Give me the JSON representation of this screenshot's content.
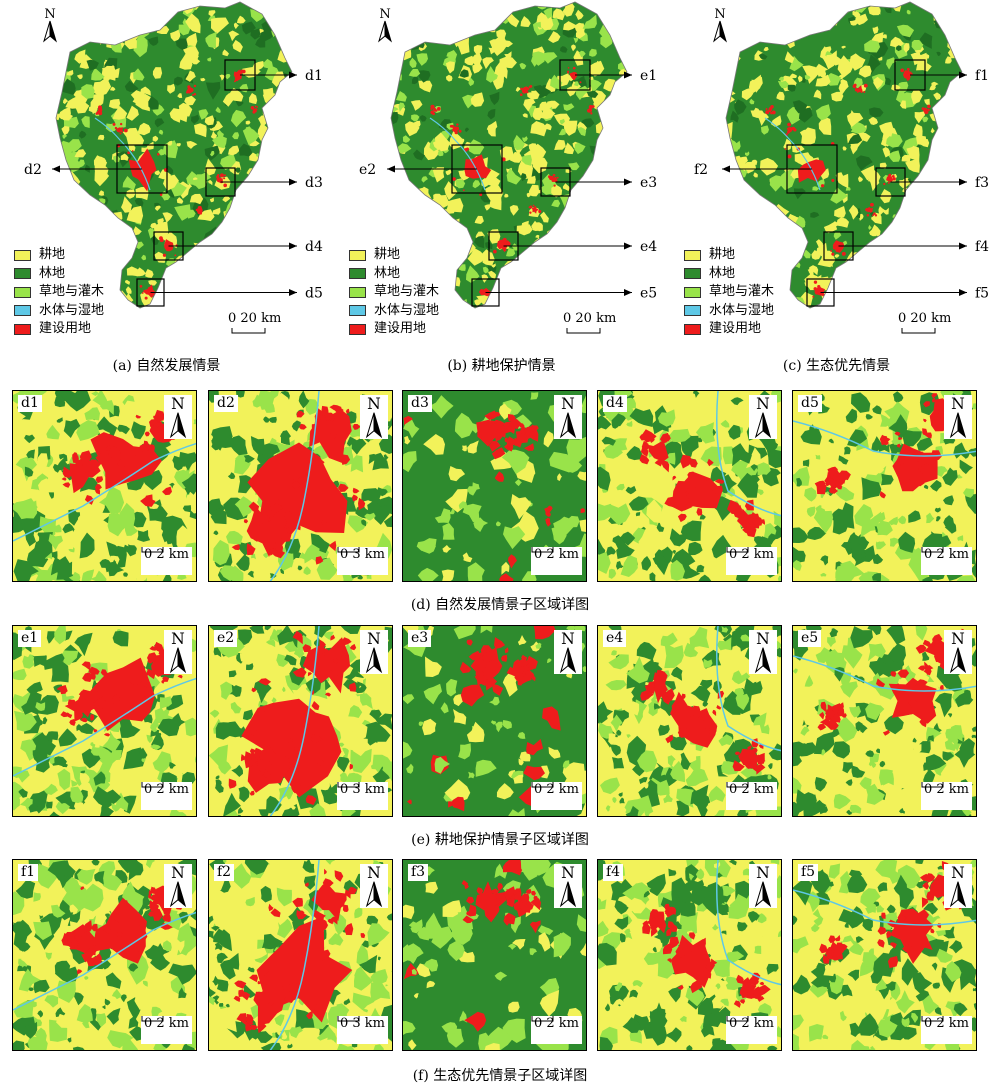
{
  "overview_maps": [
    {
      "id": "a",
      "caption": "(a) 自然发展情景",
      "prefix": "d",
      "boxes": [
        {
          "label": "d1"
        },
        {
          "label": "d2"
        },
        {
          "label": "d3"
        },
        {
          "label": "d4"
        },
        {
          "label": "d5"
        }
      ]
    },
    {
      "id": "b",
      "caption": "(b) 耕地保护情景",
      "prefix": "e",
      "boxes": [
        {
          "label": "e1"
        },
        {
          "label": "e2"
        },
        {
          "label": "e3"
        },
        {
          "label": "e4"
        },
        {
          "label": "e5"
        }
      ]
    },
    {
      "id": "c",
      "caption": "(c) 生态优先情景",
      "prefix": "f",
      "boxes": [
        {
          "label": "f1"
        },
        {
          "label": "f2"
        },
        {
          "label": "f3"
        },
        {
          "label": "f4"
        },
        {
          "label": "f5"
        }
      ]
    }
  ],
  "north_symbol": "N",
  "overview_scale": {
    "zero": "0",
    "value": "20 km"
  },
  "legend": [
    {
      "label": "耕地",
      "color": "#f2f25a"
    },
    {
      "label": "林地",
      "color": "#2e8b2e"
    },
    {
      "label": "草地与灌木",
      "color": "#99e34a"
    },
    {
      "label": "水体与湿地",
      "color": "#5ec8e6"
    },
    {
      "label": "建设用地",
      "color": "#ee1c1c"
    }
  ],
  "detail_rows": [
    {
      "caption": "(d) 自然发展情景子区域详图",
      "tiles": [
        {
          "label": "d1",
          "scale": "0 2 km"
        },
        {
          "label": "d2",
          "scale": "0 3 km"
        },
        {
          "label": "d3",
          "scale": "0 2 km"
        },
        {
          "label": "d4",
          "scale": "0 2 km"
        },
        {
          "label": "d5",
          "scale": "0 2 km"
        }
      ]
    },
    {
      "caption": "(e) 耕地保护情景子区域详图",
      "tiles": [
        {
          "label": "e1",
          "scale": "0 2 km"
        },
        {
          "label": "e2",
          "scale": "0 3 km"
        },
        {
          "label": "e3",
          "scale": "0 2 km"
        },
        {
          "label": "e4",
          "scale": "0 2 km"
        },
        {
          "label": "e5",
          "scale": "0 2 km"
        }
      ]
    },
    {
      "caption": "(f) 生态优先情景子区域详图",
      "tiles": [
        {
          "label": "f1",
          "scale": "0 2 km"
        },
        {
          "label": "f2",
          "scale": "0 3 km"
        },
        {
          "label": "f3",
          "scale": "0 2 km"
        },
        {
          "label": "f4",
          "scale": "0 2 km"
        },
        {
          "label": "f5",
          "scale": "0 2 km"
        }
      ]
    }
  ]
}
